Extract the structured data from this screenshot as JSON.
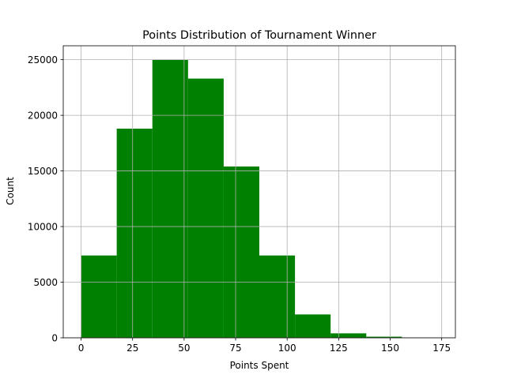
{
  "chart_data": {
    "type": "bar",
    "title": "Points Distribution of Tournament Winner",
    "xlabel": "Points Spent",
    "ylabel": "Count",
    "bin_edges": [
      0,
      17.3,
      34.6,
      51.9,
      69.2,
      86.5,
      103.8,
      121.1,
      138.4,
      155.7,
      173
    ],
    "values": [
      7400,
      18800,
      25000,
      23300,
      15400,
      7400,
      2100,
      400,
      100,
      10
    ],
    "xlim": [
      -8.65,
      181.65
    ],
    "ylim": [
      0,
      26250
    ],
    "xticks": [
      0,
      25,
      50,
      75,
      100,
      125,
      150,
      175
    ],
    "yticks": [
      0,
      5000,
      10000,
      15000,
      20000,
      25000
    ],
    "grid": true,
    "bar_color": "#008000",
    "grid_color": "#b0b0b0"
  }
}
